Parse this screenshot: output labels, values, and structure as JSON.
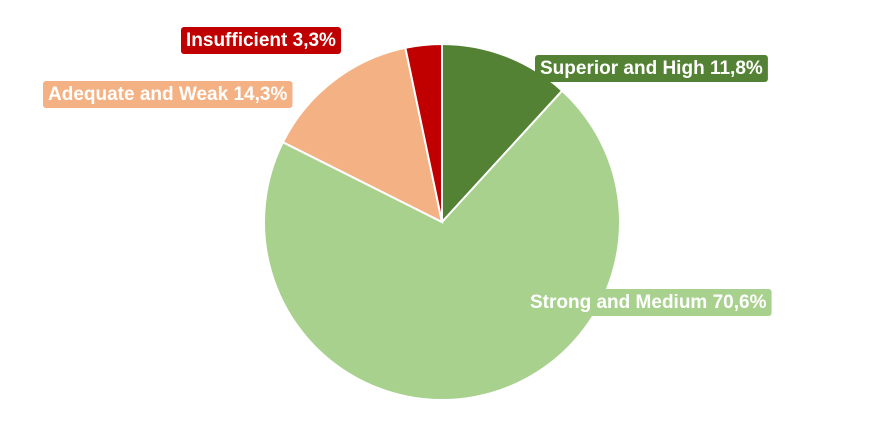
{
  "chart_data": {
    "type": "pie",
    "categories": [
      "Superior and High",
      "Strong and Medium",
      "Adequate and Weak",
      "Insufficient"
    ],
    "values": [
      11.8,
      70.6,
      14.3,
      3.3
    ],
    "value_labels": [
      "11,8%",
      "70,6%",
      "14,3%",
      "3,3%"
    ],
    "colors": [
      "#548235",
      "#a9d18e",
      "#f4b183",
      "#c00000"
    ]
  }
}
